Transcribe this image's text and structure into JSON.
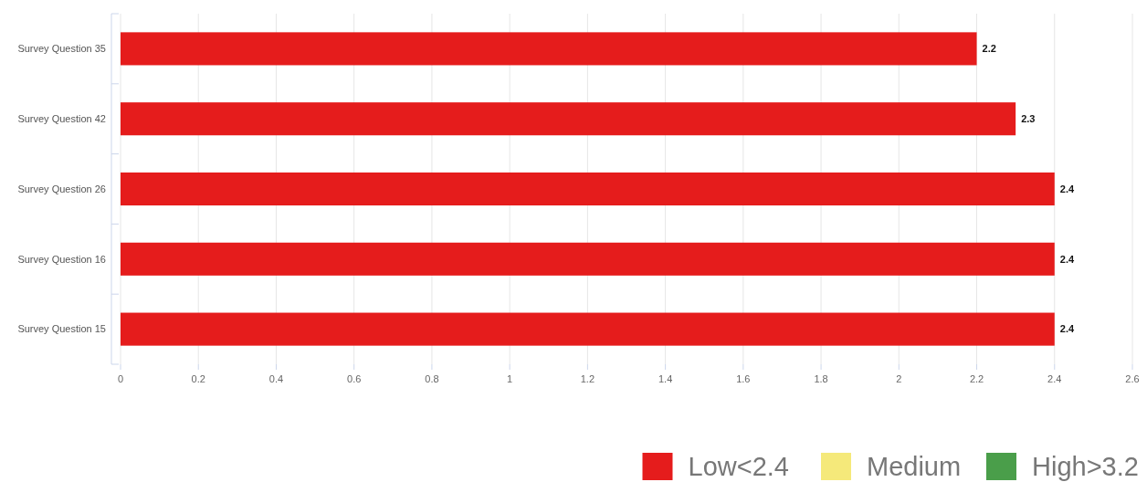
{
  "chart_data": {
    "type": "bar",
    "orientation": "horizontal",
    "stacked": true,
    "categories": [
      "Survey Question 35",
      "Survey Question 42",
      "Survey Question 26",
      "Survey Question 16",
      "Survey Question 15"
    ],
    "series": [
      {
        "name": "Low<2.4",
        "color": "#e51c1c",
        "values": [
          2.2,
          2.3,
          2.4,
          2.4,
          2.4
        ]
      },
      {
        "name": "Medium",
        "color": "#f5e97a",
        "values": [
          null,
          null,
          null,
          null,
          null
        ]
      },
      {
        "name": "High>3.2",
        "color": "#4a9e4a",
        "values": [
          null,
          null,
          null,
          null,
          null
        ]
      }
    ],
    "xlim": [
      0,
      2.6
    ],
    "xticks": [
      0,
      0.2,
      0.4,
      0.6,
      0.8,
      1,
      1.2,
      1.4,
      1.6,
      1.8,
      2,
      2.2,
      2.4,
      2.6
    ],
    "grid": "x",
    "legend": "bottom right",
    "data_labels": true
  }
}
